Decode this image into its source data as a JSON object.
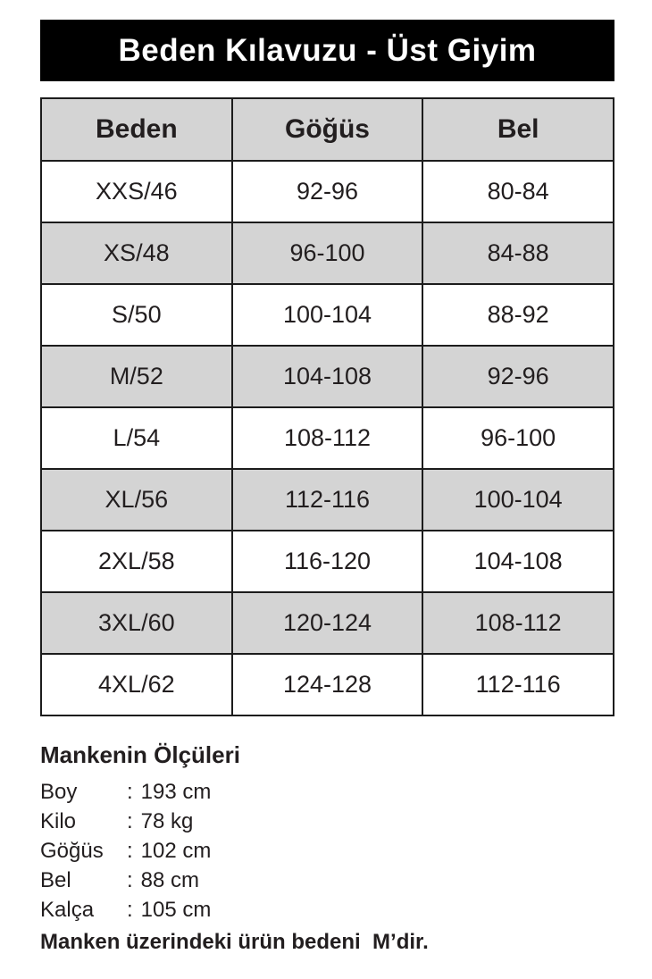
{
  "title_bar": {
    "title": "Beden Kılavuzu - Üst Giyim"
  },
  "size_table": {
    "headers": [
      "Beden",
      "Göğüs",
      "Bel"
    ],
    "rows": [
      {
        "size": "XXS/46",
        "chest": "92-96",
        "waist": "80-84"
      },
      {
        "size": "XS/48",
        "chest": "96-100",
        "waist": "84-88"
      },
      {
        "size": "S/50",
        "chest": "100-104",
        "waist": "88-92"
      },
      {
        "size": "M/52",
        "chest": "104-108",
        "waist": "92-96"
      },
      {
        "size": "L/54",
        "chest": "108-112",
        "waist": "96-100"
      },
      {
        "size": "XL/56",
        "chest": "112-116",
        "waist": "100-104"
      },
      {
        "size": "2XL/58",
        "chest": "116-120",
        "waist": "104-108"
      },
      {
        "size": "3XL/60",
        "chest": "120-124",
        "waist": "108-112"
      },
      {
        "size": "4XL/62",
        "chest": "124-128",
        "waist": "112-116"
      }
    ]
  },
  "model_measurements": {
    "heading": "Mankenin Ölçüleri",
    "colon": ":",
    "items": [
      {
        "label": "Boy",
        "value": "193 cm"
      },
      {
        "label": "Kilo",
        "value": "78 kg"
      },
      {
        "label": "Göğüs",
        "value": "102 cm"
      },
      {
        "label": "Bel",
        "value": "88 cm"
      },
      {
        "label": "Kalça",
        "value": "105 cm"
      }
    ],
    "note": "Manken üzerindeki ürün bedeni  M’dir."
  },
  "colors": {
    "title_bar_bg": "#000000",
    "title_bar_text": "#ffffff",
    "row_shaded_bg": "#d4d4d4",
    "table_border": "#1c1c1c",
    "text": "#221e1f"
  }
}
